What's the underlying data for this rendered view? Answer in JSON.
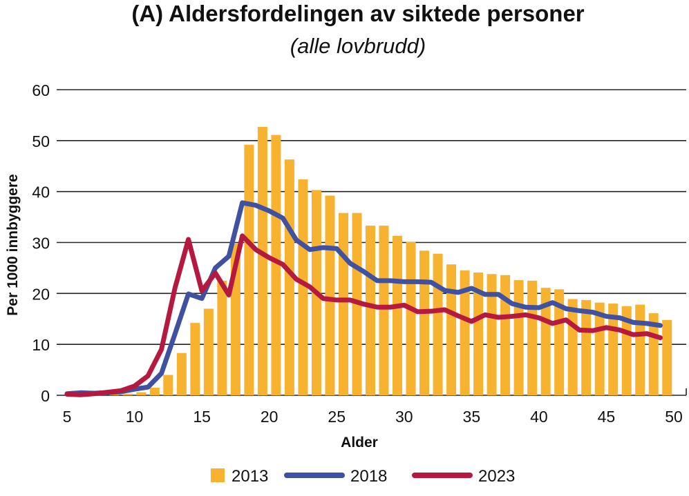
{
  "chart_data": {
    "type": "bar+line",
    "title": "(A) Aldersfordelingen av siktede personer",
    "subtitle": "(alle lovbrudd)",
    "xlabel": "Alder",
    "ylabel": "Per 1000 innbyggere",
    "xlim": [
      5,
      50
    ],
    "ylim": [
      0,
      60
    ],
    "xticks": [
      5,
      10,
      15,
      20,
      25,
      30,
      35,
      40,
      45,
      50
    ],
    "yticks": [
      0,
      10,
      20,
      30,
      40,
      50,
      60
    ],
    "grid": "horizontal",
    "legend_position": "bottom",
    "x": [
      5,
      6,
      7,
      8,
      9,
      10,
      11,
      12,
      13,
      14,
      15,
      16,
      17,
      18,
      19,
      20,
      21,
      22,
      23,
      24,
      25,
      26,
      27,
      28,
      29,
      30,
      31,
      32,
      33,
      34,
      35,
      36,
      37,
      38,
      39,
      40,
      41,
      42,
      43,
      44,
      45,
      46,
      47,
      48,
      49
    ],
    "series": [
      {
        "name": "2013",
        "kind": "bar",
        "color": "#F7B22F",
        "values": [
          0,
          0,
          0.1,
          0.2,
          0.3,
          0.6,
          1.5,
          4,
          8.3,
          14.2,
          17,
          22.5,
          29.8,
          49.2,
          52.7,
          51.1,
          46.3,
          42.4,
          40.3,
          39.2,
          35.8,
          35.8,
          33.3,
          33.3,
          31.3,
          30.1,
          28.4,
          27.8,
          25.7,
          24.5,
          24.1,
          23.8,
          23.6,
          22.6,
          22.5,
          21.1,
          20.8,
          18.9,
          18.7,
          18.2,
          18.0,
          17.5,
          17.8,
          16.1,
          14.8
        ]
      },
      {
        "name": "2018",
        "kind": "line",
        "color": "#3F51A0",
        "values": [
          0.3,
          0.5,
          0.4,
          0.5,
          0.7,
          1.2,
          1.6,
          4.3,
          12,
          19.9,
          19,
          25,
          27.3,
          37.8,
          37.3,
          36.2,
          34.8,
          30.5,
          28.6,
          29,
          28.8,
          25.9,
          24.3,
          22.5,
          22.5,
          22.3,
          22.3,
          22.2,
          20.6,
          20.2,
          21,
          19.8,
          19.8,
          18,
          17.3,
          17.2,
          18.2,
          17,
          16.6,
          16.3,
          15.5,
          15.2,
          14.3,
          14.1,
          13.7
        ]
      },
      {
        "name": "2023",
        "kind": "line",
        "color": "#B5193F",
        "values": [
          0.2,
          0.1,
          0.3,
          0.6,
          0.9,
          1.8,
          3.8,
          9,
          21,
          30.6,
          20.5,
          24,
          19.7,
          31.3,
          28.6,
          27,
          25.7,
          22.8,
          21.3,
          19,
          18.7,
          18.7,
          17.9,
          17.3,
          17.3,
          17.7,
          16.4,
          16.5,
          16.8,
          15.6,
          14.5,
          15.8,
          15.3,
          15.5,
          15.8,
          15.2,
          14.1,
          14.8,
          12.8,
          12.7,
          13.3,
          12.8,
          11.9,
          12.1,
          11.3
        ]
      }
    ]
  }
}
